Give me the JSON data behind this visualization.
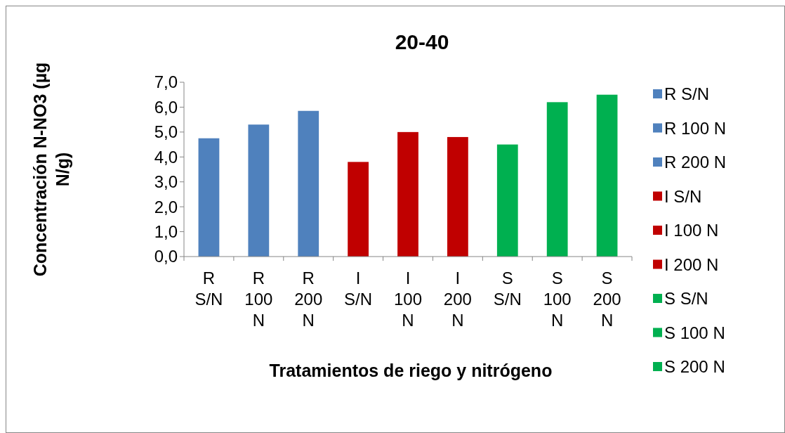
{
  "chart_data": {
    "type": "bar",
    "title": "20-40",
    "xlabel": "Tratamientos de riego y nitrógeno",
    "ylabel": "Concentración N-NO3 (µg N/g)",
    "categories": [
      "R S/N",
      "R 100 N",
      "R 200 N",
      "I S/N",
      "I 100 N",
      "I 200 N",
      "S S/N",
      "S 100 N",
      "S 200 N"
    ],
    "series": [
      {
        "name": "R S/N",
        "color": "#4f81bd",
        "values": [
          4.75,
          null,
          null,
          null,
          null,
          null,
          null,
          null,
          null
        ]
      },
      {
        "name": "R 100 N",
        "color": "#4f81bd",
        "values": [
          null,
          5.3,
          null,
          null,
          null,
          null,
          null,
          null,
          null
        ]
      },
      {
        "name": "R 200 N",
        "color": "#4f81bd",
        "values": [
          null,
          null,
          5.85,
          null,
          null,
          null,
          null,
          null,
          null
        ]
      },
      {
        "name": "I S/N",
        "color": "#c00000",
        "values": [
          null,
          null,
          null,
          3.8,
          null,
          null,
          null,
          null,
          null
        ]
      },
      {
        "name": "I 100 N",
        "color": "#c00000",
        "values": [
          null,
          null,
          null,
          null,
          5.0,
          null,
          null,
          null,
          null
        ]
      },
      {
        "name": "I 200 N",
        "color": "#c00000",
        "values": [
          null,
          null,
          null,
          null,
          null,
          4.8,
          null,
          null,
          null
        ]
      },
      {
        "name": "S S/N",
        "color": "#00b050",
        "values": [
          null,
          null,
          null,
          null,
          null,
          null,
          4.5,
          null,
          null
        ]
      },
      {
        "name": "S 100 N",
        "color": "#00b050",
        "values": [
          null,
          null,
          null,
          null,
          null,
          null,
          null,
          6.2,
          null
        ]
      },
      {
        "name": "S 200 N",
        "color": "#00b050",
        "values": [
          null,
          null,
          null,
          null,
          null,
          null,
          null,
          null,
          6.5
        ]
      }
    ],
    "ylim": [
      0,
      7
    ],
    "yticks": [
      {
        "value": 0,
        "label": "0,0"
      },
      {
        "value": 1,
        "label": "1,0"
      },
      {
        "value": 2,
        "label": "2,0"
      },
      {
        "value": 3,
        "label": "3,0"
      },
      {
        "value": 4,
        "label": "4,0"
      },
      {
        "value": 5,
        "label": "5,0"
      },
      {
        "value": 6,
        "label": "6,0"
      },
      {
        "value": 7,
        "label": "7,0"
      }
    ],
    "legend": "right"
  }
}
